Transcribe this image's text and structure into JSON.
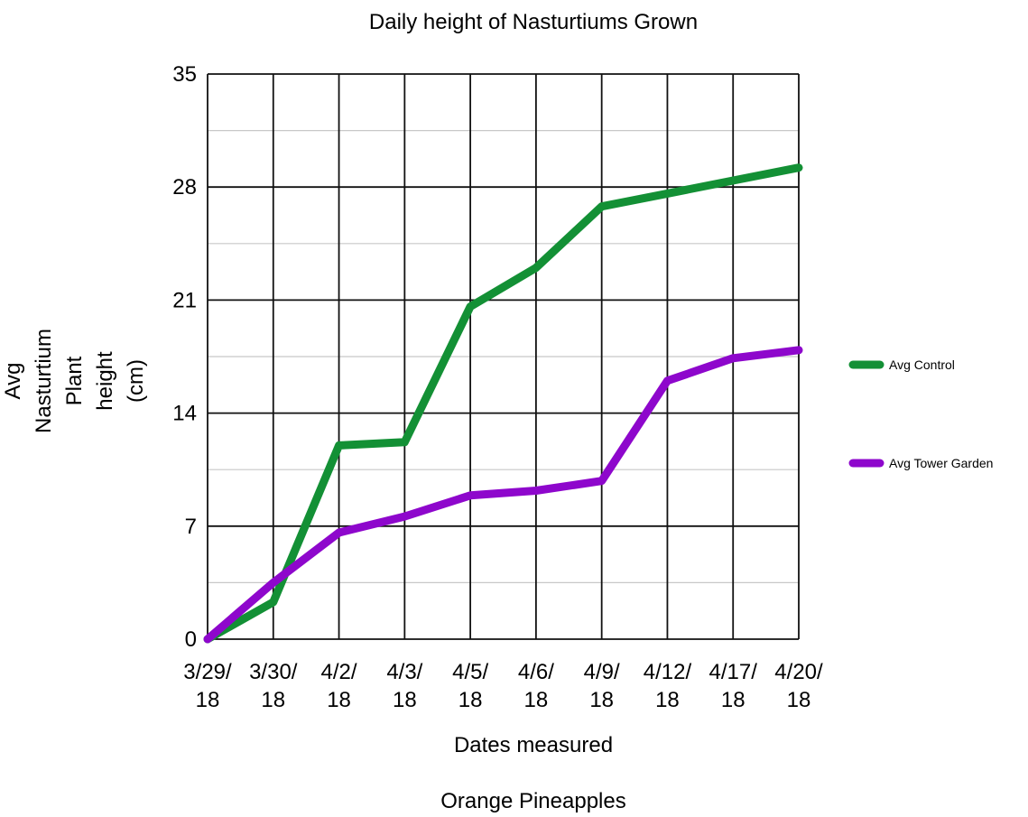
{
  "chart_data": {
    "type": "line",
    "title": "Daily height of Nasturtiums Grown",
    "xlabel": "Dates measured",
    "ylabel": [
      "Avg",
      "Nasturtium",
      "Plant",
      "height",
      "(cm)"
    ],
    "footer": "Orange Pineapples",
    "categories": [
      [
        "3/29/",
        "18"
      ],
      [
        "3/30/",
        "18"
      ],
      [
        "4/2/",
        "18"
      ],
      [
        "4/3/",
        "18"
      ],
      [
        "4/5/",
        "18"
      ],
      [
        "4/6/",
        "18"
      ],
      [
        "4/9/",
        "18"
      ],
      [
        "4/12/",
        "18"
      ],
      [
        "4/17/",
        "18"
      ],
      [
        "4/20/",
        "18"
      ]
    ],
    "ylim": [
      0,
      35
    ],
    "yticks": [
      0,
      7,
      14,
      21,
      28,
      35
    ],
    "grid": true,
    "legend_position": "right",
    "series": [
      {
        "name": "Avg Control",
        "color": "#139035",
        "values": [
          0,
          2.3,
          12,
          12.2,
          20.6,
          23,
          26.8,
          27.6,
          28.4,
          29.2
        ]
      },
      {
        "name": "Avg Tower Garden",
        "color": "#8e07cc",
        "values": [
          0,
          3.5,
          6.6,
          7.6,
          8.9,
          9.2,
          9.8,
          16,
          17.4,
          17.9
        ]
      }
    ]
  }
}
